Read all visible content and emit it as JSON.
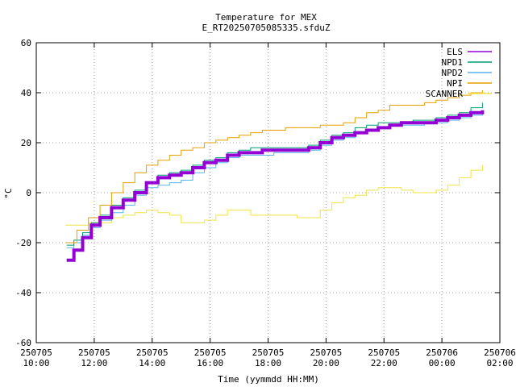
{
  "chart_data": {
    "type": "line",
    "title": "Temperature for MEX",
    "subtitle": "E_RT20250705085335.sfduZ",
    "xlabel": "Time (yymmdd HH:MM)",
    "ylabel": "°C",
    "ylim": [
      -60,
      60
    ],
    "xlim": [
      10,
      26
    ],
    "grid": true,
    "legend_position": "top-right",
    "y_ticks": [
      -60,
      -40,
      -20,
      0,
      20,
      40,
      60
    ],
    "x_ticks": [
      {
        "x": 10,
        "date": "250705",
        "time": "10:00"
      },
      {
        "x": 12,
        "date": "250705",
        "time": "12:00"
      },
      {
        "x": 14,
        "date": "250705",
        "time": "14:00"
      },
      {
        "x": 16,
        "date": "250705",
        "time": "16:00"
      },
      {
        "x": 18,
        "date": "250705",
        "time": "18:00"
      },
      {
        "x": 20,
        "date": "250705",
        "time": "20:00"
      },
      {
        "x": 22,
        "date": "250705",
        "time": "22:00"
      },
      {
        "x": 24,
        "date": "250706",
        "time": "00:00"
      },
      {
        "x": 26,
        "date": "250706",
        "time": "02:00"
      }
    ],
    "series": [
      {
        "name": "ELS",
        "color": "#9400d3",
        "points": [
          [
            11.05,
            -27
          ],
          [
            11.3,
            -23
          ],
          [
            11.6,
            -18
          ],
          [
            11.9,
            -13
          ],
          [
            12.2,
            -10
          ],
          [
            12.6,
            -6
          ],
          [
            13.0,
            -3
          ],
          [
            13.4,
            0
          ],
          [
            13.8,
            4
          ],
          [
            14.2,
            6
          ],
          [
            14.6,
            7
          ],
          [
            15.0,
            8
          ],
          [
            15.4,
            10
          ],
          [
            15.8,
            12
          ],
          [
            16.2,
            13
          ],
          [
            16.6,
            15
          ],
          [
            17.0,
            16
          ],
          [
            17.4,
            16
          ],
          [
            17.8,
            17
          ],
          [
            18.2,
            17
          ],
          [
            18.6,
            17
          ],
          [
            19.0,
            17
          ],
          [
            19.4,
            18
          ],
          [
            19.8,
            20
          ],
          [
            20.2,
            22
          ],
          [
            20.6,
            23
          ],
          [
            21.0,
            24
          ],
          [
            21.4,
            25
          ],
          [
            21.8,
            26
          ],
          [
            22.2,
            27
          ],
          [
            22.6,
            28
          ],
          [
            23.0,
            28
          ],
          [
            23.4,
            28
          ],
          [
            23.8,
            29
          ],
          [
            24.2,
            30
          ],
          [
            24.6,
            31
          ],
          [
            25.0,
            32
          ],
          [
            25.4,
            33
          ]
        ]
      },
      {
        "name": "NPD1",
        "color": "#009e73",
        "points": [
          [
            11.05,
            -21
          ],
          [
            11.3,
            -19
          ],
          [
            11.6,
            -16
          ],
          [
            11.9,
            -12
          ],
          [
            12.2,
            -9
          ],
          [
            12.6,
            -5
          ],
          [
            13.0,
            -2
          ],
          [
            13.4,
            1
          ],
          [
            13.8,
            4
          ],
          [
            14.2,
            7
          ],
          [
            14.6,
            8
          ],
          [
            15.0,
            9
          ],
          [
            15.4,
            11
          ],
          [
            15.8,
            13
          ],
          [
            16.2,
            14
          ],
          [
            16.6,
            16
          ],
          [
            17.0,
            17
          ],
          [
            17.4,
            18
          ],
          [
            17.8,
            18
          ],
          [
            18.2,
            18
          ],
          [
            18.6,
            18
          ],
          [
            19.0,
            18
          ],
          [
            19.4,
            19
          ],
          [
            19.8,
            21
          ],
          [
            20.2,
            23
          ],
          [
            20.6,
            24
          ],
          [
            21.0,
            26
          ],
          [
            21.4,
            27
          ],
          [
            21.8,
            28
          ],
          [
            22.2,
            28
          ],
          [
            22.6,
            28
          ],
          [
            23.0,
            29
          ],
          [
            23.4,
            29
          ],
          [
            23.8,
            30
          ],
          [
            24.2,
            31
          ],
          [
            24.6,
            32
          ],
          [
            25.0,
            34
          ],
          [
            25.4,
            36
          ]
        ]
      },
      {
        "name": "NPD2",
        "color": "#56b4e9",
        "points": [
          [
            11.05,
            -22
          ],
          [
            11.3,
            -20
          ],
          [
            11.6,
            -17
          ],
          [
            11.9,
            -14
          ],
          [
            12.2,
            -11
          ],
          [
            12.6,
            -8
          ],
          [
            13.0,
            -5
          ],
          [
            13.4,
            -1
          ],
          [
            13.8,
            2
          ],
          [
            14.2,
            3
          ],
          [
            14.6,
            4
          ],
          [
            15.0,
            5
          ],
          [
            15.4,
            8
          ],
          [
            15.8,
            10
          ],
          [
            16.2,
            12
          ],
          [
            16.6,
            14
          ],
          [
            17.0,
            15
          ],
          [
            17.4,
            15
          ],
          [
            17.8,
            15
          ],
          [
            18.2,
            16
          ],
          [
            18.6,
            16
          ],
          [
            19.0,
            16
          ],
          [
            19.4,
            17
          ],
          [
            19.8,
            19
          ],
          [
            20.2,
            21
          ],
          [
            20.6,
            22
          ],
          [
            21.0,
            24
          ],
          [
            21.4,
            25
          ],
          [
            21.8,
            26
          ],
          [
            22.2,
            27
          ],
          [
            22.6,
            27
          ],
          [
            23.0,
            27
          ],
          [
            23.4,
            28
          ],
          [
            23.8,
            28
          ],
          [
            24.2,
            29
          ],
          [
            24.6,
            30
          ],
          [
            25.0,
            31
          ],
          [
            25.4,
            32
          ]
        ]
      },
      {
        "name": "NPI",
        "color": "#e69f00",
        "points": [
          [
            11.0,
            -20
          ],
          [
            11.4,
            -15
          ],
          [
            11.8,
            -10
          ],
          [
            12.2,
            -5
          ],
          [
            12.6,
            0
          ],
          [
            13.0,
            4
          ],
          [
            13.4,
            8
          ],
          [
            13.8,
            11
          ],
          [
            14.2,
            13
          ],
          [
            14.6,
            15
          ],
          [
            15.0,
            17
          ],
          [
            15.4,
            18
          ],
          [
            15.8,
            20
          ],
          [
            16.2,
            21
          ],
          [
            16.6,
            22
          ],
          [
            17.0,
            23
          ],
          [
            17.4,
            24
          ],
          [
            17.8,
            25
          ],
          [
            18.2,
            25
          ],
          [
            18.6,
            26
          ],
          [
            19.0,
            26
          ],
          [
            19.4,
            26
          ],
          [
            19.8,
            27
          ],
          [
            20.2,
            27
          ],
          [
            20.6,
            28
          ],
          [
            21.0,
            30
          ],
          [
            21.4,
            32
          ],
          [
            21.8,
            33
          ],
          [
            22.2,
            35
          ],
          [
            22.6,
            35
          ],
          [
            23.0,
            35
          ],
          [
            23.4,
            36
          ],
          [
            23.8,
            37
          ],
          [
            24.2,
            38
          ],
          [
            24.6,
            39
          ],
          [
            25.0,
            40
          ],
          [
            25.4,
            41
          ]
        ]
      },
      {
        "name": "SCANNER",
        "color": "#f0e442",
        "points": [
          [
            11.0,
            -13
          ],
          [
            11.4,
            -13
          ],
          [
            11.8,
            -12
          ],
          [
            12.2,
            -12
          ],
          [
            12.6,
            -10
          ],
          [
            13.0,
            -9
          ],
          [
            13.4,
            -8
          ],
          [
            13.8,
            -7
          ],
          [
            14.2,
            -8
          ],
          [
            14.6,
            -9
          ],
          [
            15.0,
            -12
          ],
          [
            15.4,
            -12
          ],
          [
            15.8,
            -11
          ],
          [
            16.2,
            -9
          ],
          [
            16.6,
            -7
          ],
          [
            17.0,
            -7
          ],
          [
            17.4,
            -9
          ],
          [
            17.8,
            -9
          ],
          [
            18.2,
            -9
          ],
          [
            18.6,
            -9
          ],
          [
            19.0,
            -10
          ],
          [
            19.4,
            -10
          ],
          [
            19.8,
            -7
          ],
          [
            20.2,
            -4
          ],
          [
            20.6,
            -2
          ],
          [
            21.0,
            -1
          ],
          [
            21.4,
            1
          ],
          [
            21.8,
            2
          ],
          [
            22.2,
            2
          ],
          [
            22.6,
            1
          ],
          [
            23.0,
            0
          ],
          [
            23.4,
            0
          ],
          [
            23.8,
            1
          ],
          [
            24.2,
            3
          ],
          [
            24.6,
            6
          ],
          [
            25.0,
            9
          ],
          [
            25.4,
            11
          ]
        ]
      }
    ]
  }
}
